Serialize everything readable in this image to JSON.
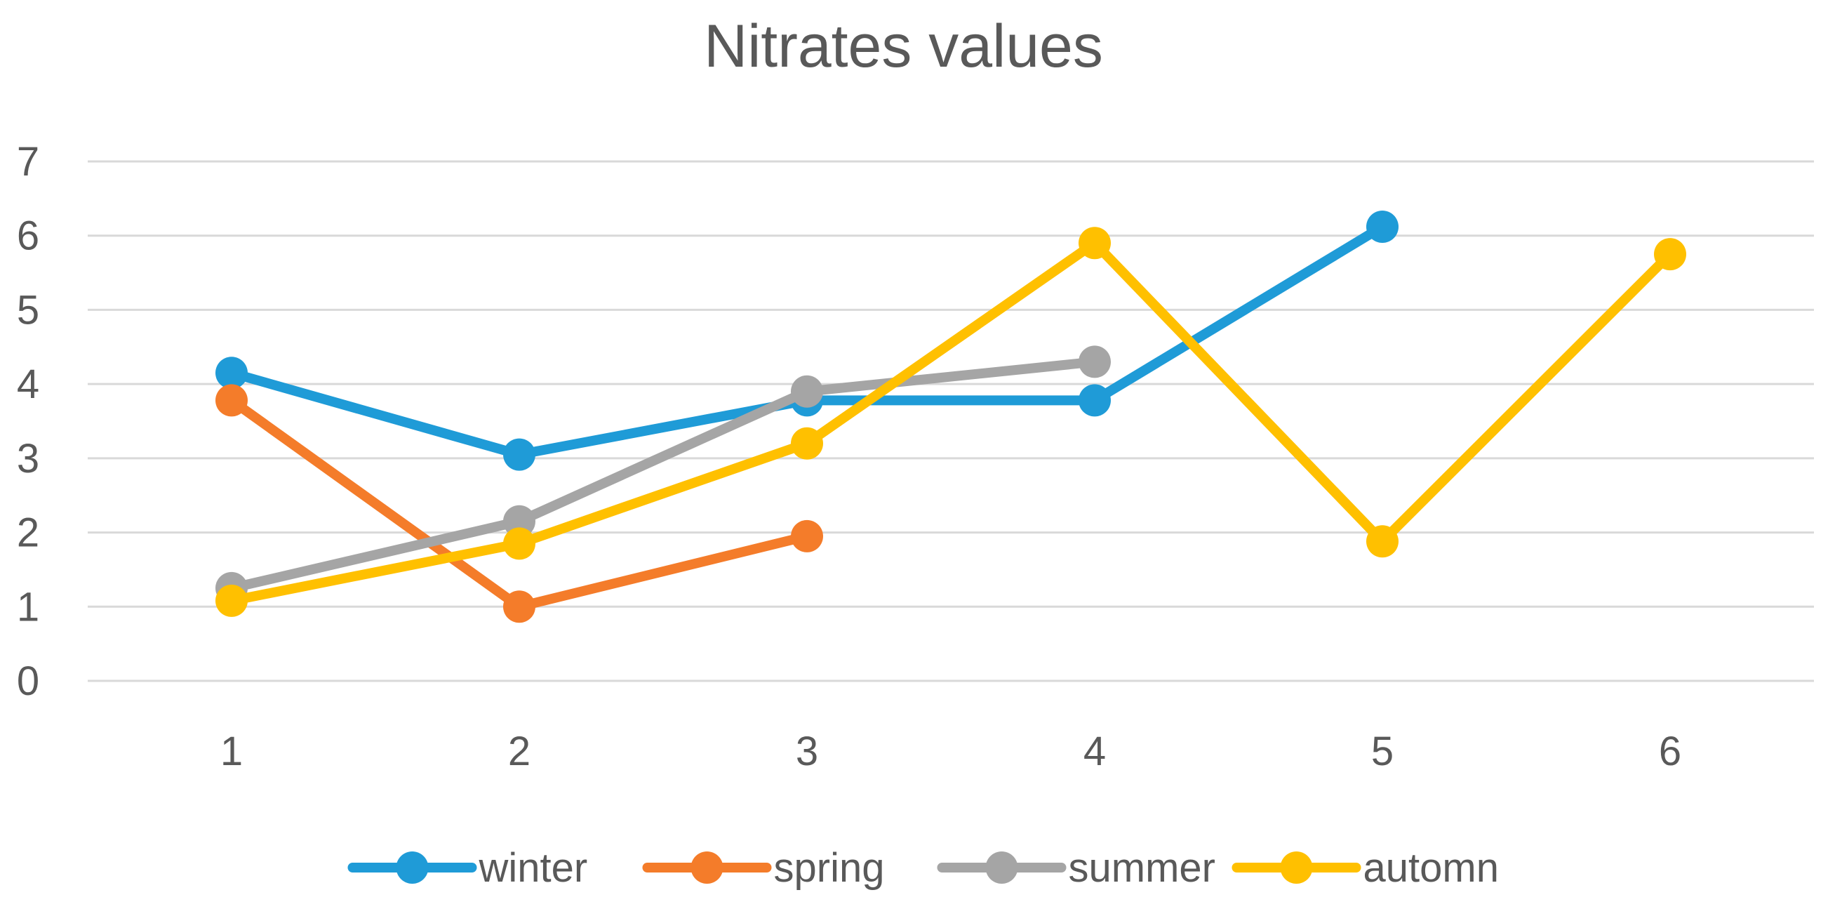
{
  "chart_data": {
    "type": "line",
    "title": "Nitrates values",
    "xlabel": "",
    "ylabel": "",
    "categories": [
      "1",
      "2",
      "3",
      "4",
      "5",
      "6"
    ],
    "x": [
      1,
      2,
      3,
      4,
      5,
      6
    ],
    "ylim": [
      0,
      7
    ],
    "yticks": [
      0,
      1,
      2,
      3,
      4,
      5,
      6,
      7
    ],
    "grid": true,
    "legend_position": "bottom",
    "series": [
      {
        "name": "winter",
        "color": "#1f9bd7",
        "values": [
          4.15,
          3.05,
          3.78,
          3.78,
          6.12,
          null
        ]
      },
      {
        "name": "spring",
        "color": "#f47c2a",
        "values": [
          3.78,
          1.0,
          1.95,
          null,
          null,
          null
        ]
      },
      {
        "name": "summer",
        "color": "#a5a5a5",
        "values": [
          1.25,
          2.15,
          3.9,
          4.3,
          null,
          null
        ]
      },
      {
        "name": "automn",
        "color": "#ffc000",
        "values": [
          1.08,
          1.85,
          3.2,
          5.9,
          1.88,
          5.75
        ]
      }
    ]
  }
}
